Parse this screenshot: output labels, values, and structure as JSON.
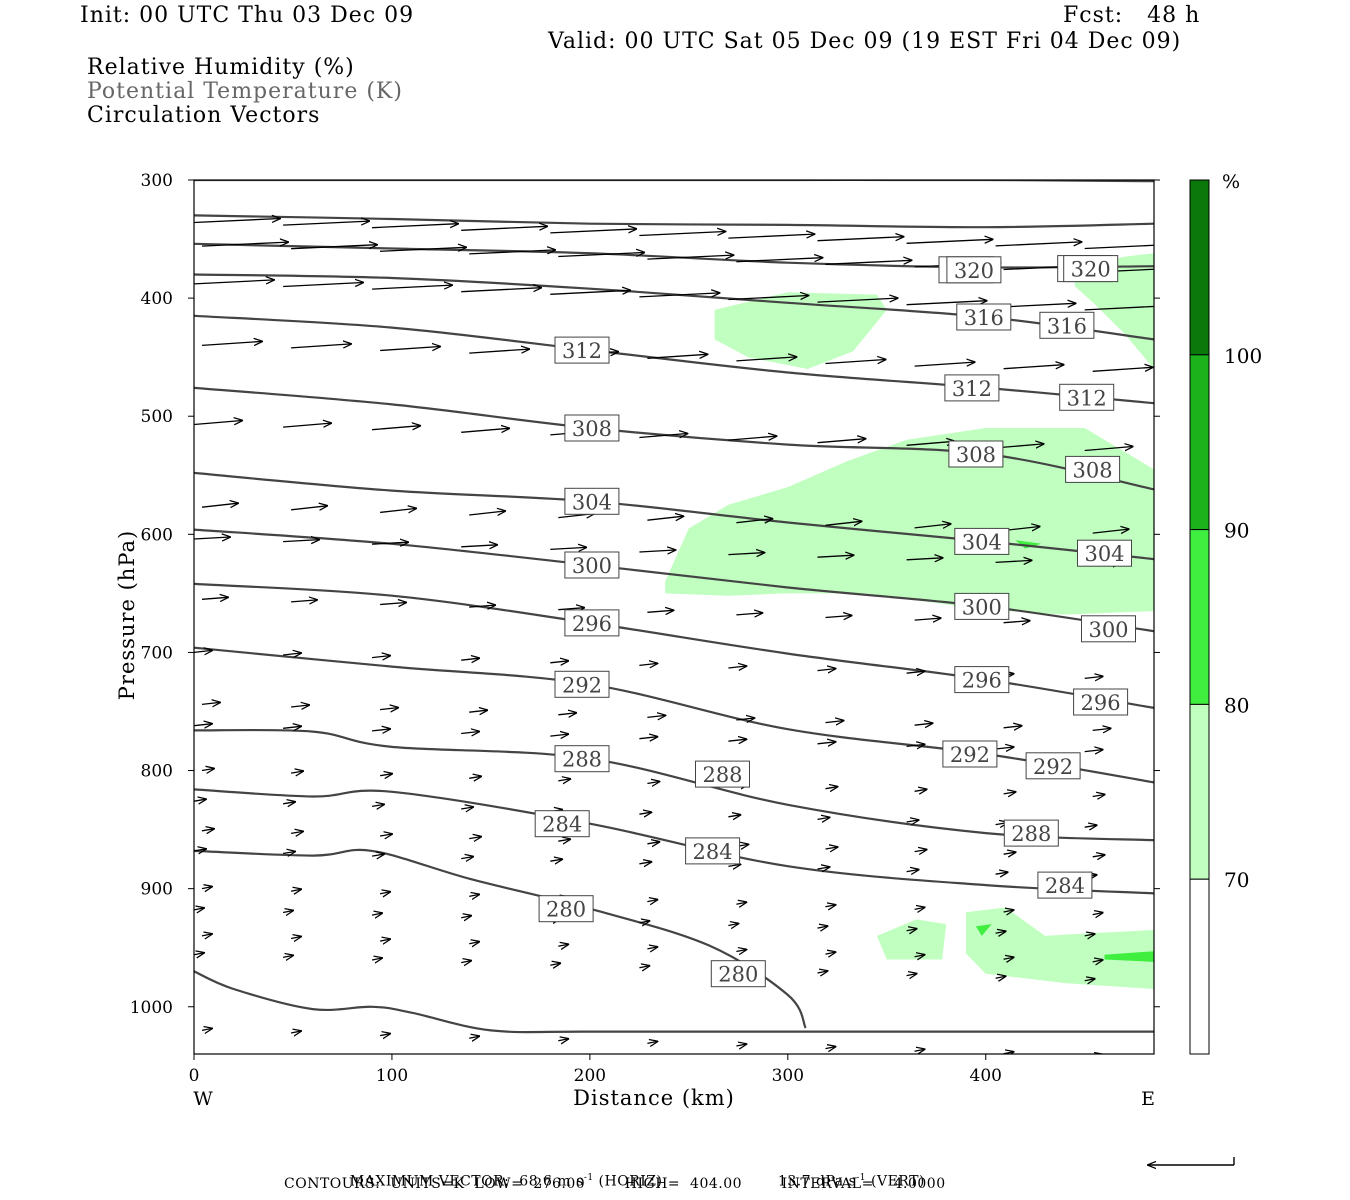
{
  "header": {
    "init": "Init: 00 UTC Thu 03 Dec 09",
    "fcst": "Fcst:   48 h",
    "valid": "Valid: 00 UTC Sat 05 Dec 09 (19 EST Fri 04 Dec 09)",
    "fields": [
      "Relative Humidity (%)",
      "Potential Temperature (K)",
      "Circulation Vectors"
    ]
  },
  "colors": {
    "rh70": "#c0ffc0",
    "rh80": "#40ee40",
    "rh90": "#1cb21c",
    "rh100": "#0a780a",
    "contour": "#444444"
  },
  "chart_data": {
    "type": "cross-section",
    "xlabel": "Distance (km)",
    "ylabel": "Pressure (hPa)",
    "xlim": [
      0,
      485
    ],
    "ylim": [
      1040,
      300
    ],
    "x_ticks": [
      0,
      100,
      200,
      300,
      400
    ],
    "y_ticks": [
      300,
      400,
      500,
      600,
      700,
      800,
      900,
      1000
    ],
    "x_end_labels": {
      "left": "W",
      "right": "E"
    },
    "colorbar": {
      "unit": "%",
      "levels": [
        70,
        80,
        90,
        100
      ],
      "level_labels": [
        "70",
        "80",
        "90",
        "100"
      ]
    },
    "contours": [
      {
        "level": 320,
        "points": [
          [
            0,
            300
          ],
          [
            100,
            300
          ],
          [
            200,
            300
          ],
          [
            300,
            300
          ],
          [
            400,
            300
          ],
          [
            485,
            301
          ]
        ]
      },
      {
        "level": 320,
        "labels": [
          [
            390,
            376
          ],
          [
            450,
            375
          ]
        ],
        "label": "320",
        "points": [
          [
            0,
            330
          ],
          [
            100,
            333
          ],
          [
            200,
            337
          ],
          [
            300,
            338
          ],
          [
            400,
            340
          ],
          [
            485,
            337
          ]
        ]
      },
      {
        "level": 320,
        "label": "320",
        "labels": [
          [
            394,
            376
          ],
          [
            453,
            375
          ]
        ],
        "points": [
          [
            0,
            354
          ],
          [
            100,
            358
          ],
          [
            200,
            362
          ],
          [
            300,
            370
          ],
          [
            400,
            374
          ],
          [
            485,
            373
          ]
        ]
      },
      {
        "level": 316,
        "label": "316",
        "labels": [
          [
            399,
            416
          ],
          [
            441,
            423
          ]
        ],
        "points": [
          [
            0,
            380
          ],
          [
            100,
            383
          ],
          [
            200,
            392
          ],
          [
            300,
            404
          ],
          [
            400,
            416
          ],
          [
            485,
            435
          ]
        ]
      },
      {
        "level": 312,
        "label": "312",
        "labels": [
          [
            196,
            444
          ],
          [
            393,
            476
          ],
          [
            451,
            484
          ]
        ],
        "points": [
          [
            0,
            415
          ],
          [
            100,
            425
          ],
          [
            200,
            444
          ],
          [
            300,
            463
          ],
          [
            400,
            476
          ],
          [
            485,
            489
          ]
        ]
      },
      {
        "level": 308,
        "label": "308",
        "labels": [
          [
            201,
            510
          ],
          [
            395,
            532
          ],
          [
            454,
            545
          ]
        ],
        "points": [
          [
            0,
            476
          ],
          [
            100,
            490
          ],
          [
            200,
            510
          ],
          [
            300,
            524
          ],
          [
            400,
            532
          ],
          [
            485,
            562
          ]
        ]
      },
      {
        "level": 304,
        "label": "304",
        "labels": [
          [
            201,
            572
          ],
          [
            398,
            606
          ],
          [
            460,
            616
          ]
        ],
        "points": [
          [
            0,
            548
          ],
          [
            100,
            563
          ],
          [
            200,
            572
          ],
          [
            300,
            590
          ],
          [
            400,
            606
          ],
          [
            485,
            621
          ]
        ]
      },
      {
        "level": 300,
        "label": "300",
        "labels": [
          [
            201,
            626
          ],
          [
            398,
            661
          ],
          [
            462,
            680
          ]
        ],
        "points": [
          [
            0,
            596
          ],
          [
            100,
            608
          ],
          [
            200,
            626
          ],
          [
            300,
            645
          ],
          [
            400,
            661
          ],
          [
            485,
            682
          ]
        ]
      },
      {
        "level": 296,
        "label": "296",
        "labels": [
          [
            201,
            675
          ],
          [
            398,
            723
          ],
          [
            458,
            742
          ]
        ],
        "points": [
          [
            0,
            642
          ],
          [
            100,
            652
          ],
          [
            200,
            675
          ],
          [
            300,
            701
          ],
          [
            400,
            723
          ],
          [
            485,
            747
          ]
        ]
      },
      {
        "level": 292,
        "label": "292",
        "labels": [
          [
            196,
            727
          ],
          [
            392,
            786
          ],
          [
            434,
            796
          ]
        ],
        "points": [
          [
            0,
            696
          ],
          [
            100,
            712
          ],
          [
            200,
            727
          ],
          [
            300,
            765
          ],
          [
            400,
            786
          ],
          [
            485,
            810
          ]
        ]
      },
      {
        "level": 288,
        "label": "288",
        "labels": [
          [
            196,
            790
          ],
          [
            267,
            803
          ],
          [
            423,
            853
          ]
        ],
        "points": [
          [
            0,
            766
          ],
          [
            60,
            767
          ],
          [
            100,
            780
          ],
          [
            200,
            790
          ],
          [
            300,
            829
          ],
          [
            400,
            853
          ],
          [
            485,
            859
          ]
        ]
      },
      {
        "level": 284,
        "label": "284",
        "labels": [
          [
            186,
            845
          ],
          [
            262,
            868
          ],
          [
            440,
            897
          ]
        ],
        "points": [
          [
            0,
            816
          ],
          [
            60,
            822
          ],
          [
            100,
            818
          ],
          [
            200,
            845
          ],
          [
            300,
            881
          ],
          [
            400,
            897
          ],
          [
            485,
            904
          ]
        ]
      },
      {
        "level": 280,
        "label": "280",
        "labels": [
          [
            188,
            917
          ],
          [
            275,
            972
          ]
        ],
        "points": [
          [
            0,
            868
          ],
          [
            60,
            872
          ],
          [
            90,
            868
          ],
          [
            140,
            892
          ],
          [
            200,
            917
          ],
          [
            260,
            948
          ],
          [
            300,
            990
          ],
          [
            309,
            1018
          ]
        ]
      },
      {
        "level": 276,
        "points": [
          [
            0,
            970
          ],
          [
            20,
            985
          ],
          [
            60,
            1002
          ],
          [
            90,
            1000
          ],
          [
            110,
            1005
          ],
          [
            150,
            1020
          ],
          [
            200,
            1021
          ],
          [
            300,
            1021
          ],
          [
            485,
            1021
          ]
        ]
      }
    ],
    "rh_regions": [
      {
        "level": 70,
        "poly": [
          [
            263,
            410
          ],
          [
            300,
            395
          ],
          [
            345,
            397
          ],
          [
            350,
            410
          ],
          [
            333,
            445
          ],
          [
            310,
            460
          ],
          [
            280,
            450
          ],
          [
            263,
            435
          ]
        ]
      },
      {
        "level": 70,
        "poly": [
          [
            445,
            375
          ],
          [
            470,
            365
          ],
          [
            485,
            362
          ],
          [
            485,
            460
          ],
          [
            470,
            430
          ],
          [
            455,
            405
          ],
          [
            445,
            390
          ]
        ]
      },
      {
        "level": 70,
        "poly": [
          [
            238,
            640
          ],
          [
            250,
            595
          ],
          [
            270,
            575
          ],
          [
            300,
            560
          ],
          [
            330,
            538
          ],
          [
            360,
            520
          ],
          [
            400,
            510
          ],
          [
            450,
            510
          ],
          [
            485,
            545
          ],
          [
            485,
            665
          ],
          [
            440,
            668
          ],
          [
            400,
            664
          ],
          [
            340,
            650
          ],
          [
            300,
            650
          ],
          [
            270,
            652
          ],
          [
            238,
            650
          ]
        ]
      },
      {
        "level": 80,
        "poly": [
          [
            415,
            605
          ],
          [
            428,
            608
          ],
          [
            420,
            612
          ]
        ]
      },
      {
        "level": 70,
        "poly": [
          [
            345,
            940
          ],
          [
            365,
            926
          ],
          [
            380,
            930
          ],
          [
            378,
            960
          ],
          [
            350,
            960
          ]
        ]
      },
      {
        "level": 70,
        "poly": [
          [
            390,
            920
          ],
          [
            410,
            916
          ],
          [
            430,
            940
          ],
          [
            450,
            938
          ],
          [
            485,
            935
          ],
          [
            485,
            985
          ],
          [
            440,
            980
          ],
          [
            400,
            972
          ],
          [
            390,
            955
          ]
        ]
      },
      {
        "level": 80,
        "poly": [
          [
            395,
            932
          ],
          [
            403,
            930
          ],
          [
            398,
            940
          ]
        ]
      },
      {
        "level": 80,
        "poly": [
          [
            460,
            956
          ],
          [
            485,
            953
          ],
          [
            485,
            962
          ],
          [
            460,
            960
          ]
        ]
      }
    ],
    "vector_scale": {
      "max_horiz": "68.6",
      "max_vert": "13.7"
    },
    "footer": {
      "line1_a": "MAXIMUM VECTOR:  68.6 m s",
      "line1_b": "-1",
      "line1_c": " (HORIZ)",
      "line1_d": "13.7 dPa s",
      "line1_e": "-1",
      "line1_f": " (VERT)",
      "line2": "CONTOURS:  UNITS=K  LOW=  276.00        HIGH=  404.00        INTERVAL=    4.0000"
    }
  }
}
